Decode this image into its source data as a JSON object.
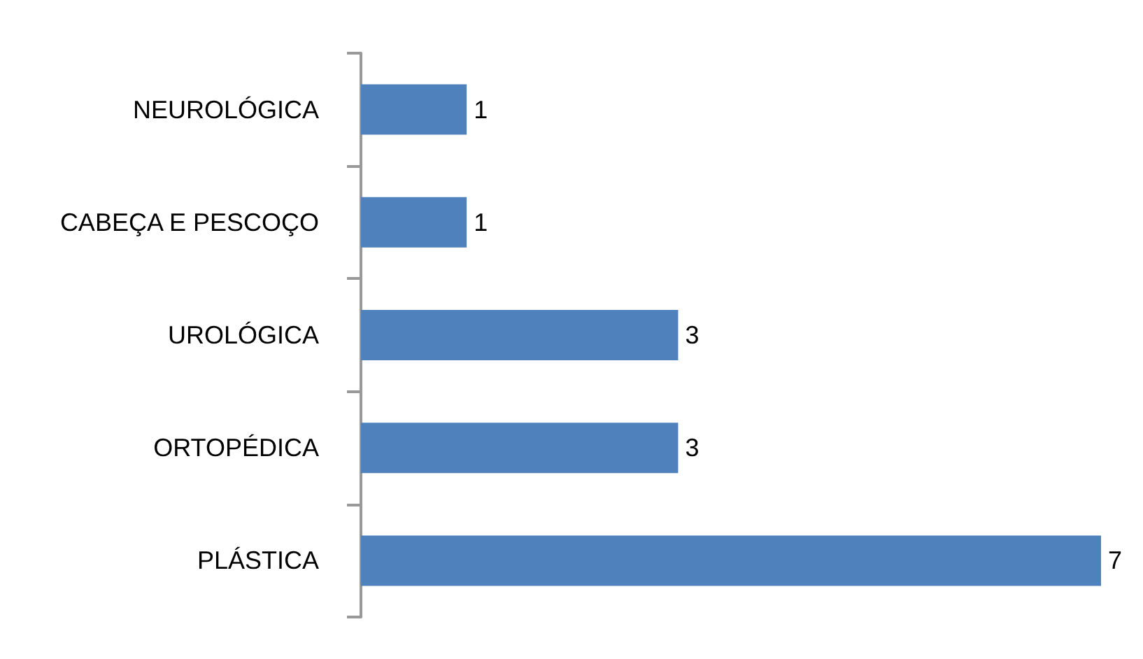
{
  "chart_data": {
    "type": "bar",
    "orientation": "horizontal",
    "categories": [
      "NEUROLÓGICA",
      "CABEÇA E PESCOÇO",
      "UROLÓGICA",
      "ORTOPÉDICA",
      "PLÁSTICA"
    ],
    "values": [
      1,
      1,
      3,
      3,
      7
    ],
    "color": "#4f81bd",
    "data_labels": true
  }
}
